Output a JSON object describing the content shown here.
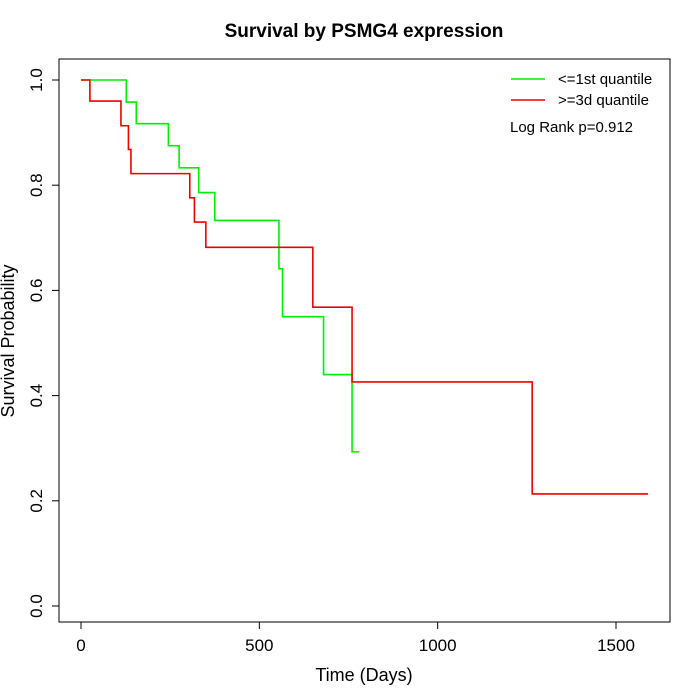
{
  "chart_data": {
    "type": "line",
    "subtype": "kaplan-meier-step",
    "title": "Survival by PSMG4 expression",
    "xlabel": "Time (Days)",
    "ylabel": "Survival Probability",
    "xlim": [
      0,
      1600
    ],
    "ylim": [
      0,
      1
    ],
    "x_ticks": [
      0,
      500,
      1000,
      1500
    ],
    "y_ticks": [
      0.0,
      0.2,
      0.4,
      0.6,
      0.8,
      1.0
    ],
    "x_tick_labels": [
      "0",
      "500",
      "1000",
      "1500"
    ],
    "y_tick_labels": [
      "0.0",
      "0.2",
      "0.4",
      "0.6",
      "0.8",
      "1.0"
    ],
    "grid": false,
    "legend_position": "top-right",
    "annotation": "Log Rank p=0.912",
    "series": [
      {
        "name": "<=1st quantile",
        "color": "#00ee00",
        "steps": [
          [
            0,
            1.0
          ],
          [
            127,
            0.958
          ],
          [
            155,
            0.917
          ],
          [
            245,
            0.875
          ],
          [
            275,
            0.833
          ],
          [
            330,
            0.786
          ],
          [
            375,
            0.733
          ],
          [
            555,
            0.641
          ],
          [
            565,
            0.55
          ],
          [
            680,
            0.44
          ],
          [
            760,
            0.293
          ],
          [
            780,
            0.293
          ]
        ]
      },
      {
        "name": ">=3d quantile",
        "color": "#ee0000",
        "steps": [
          [
            0,
            1.0
          ],
          [
            25,
            0.96
          ],
          [
            112,
            0.913
          ],
          [
            133,
            0.868
          ],
          [
            140,
            0.822
          ],
          [
            305,
            0.776
          ],
          [
            318,
            0.73
          ],
          [
            350,
            0.682
          ],
          [
            650,
            0.568
          ],
          [
            760,
            0.426
          ],
          [
            1265,
            0.213
          ],
          [
            1590,
            0.213
          ]
        ]
      }
    ]
  }
}
